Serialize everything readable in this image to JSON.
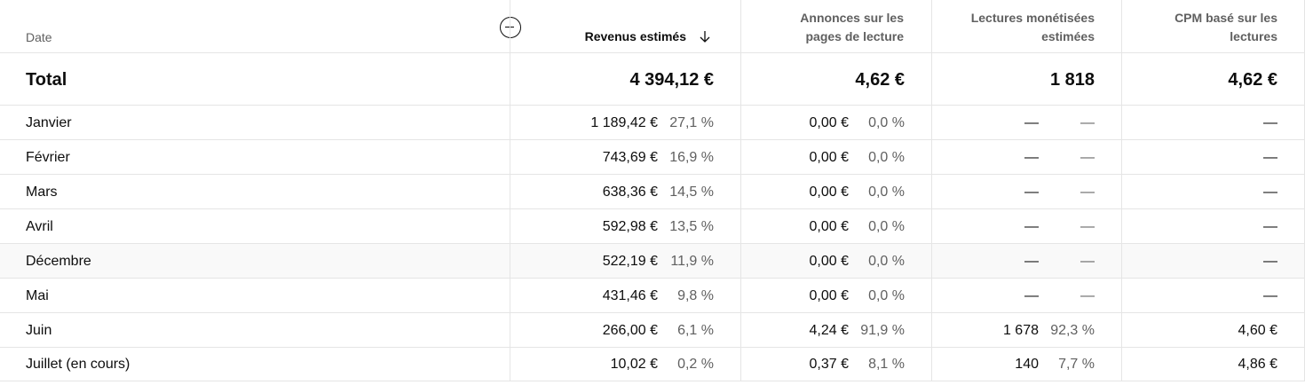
{
  "headers": {
    "date": "Date",
    "revenue": "Revenus estimés",
    "ads_line1": "Annonces sur les",
    "ads_line2": "pages de lecture",
    "plays_line1": "Lectures monétisées",
    "plays_line2": "estimées",
    "cpm_line1": "CPM basé sur les",
    "cpm_line2": "lectures"
  },
  "icons": {
    "add": "add-circle-icon",
    "sort": "arrow-down-icon"
  },
  "total": {
    "label": "Total",
    "revenue": "4 394,12 €",
    "ads": "4,62 €",
    "plays": "1 818",
    "cpm": "4,62 €"
  },
  "rows": [
    {
      "date": "Janvier",
      "revenue": "1 189,42 €",
      "revenue_pct": "27,1 %",
      "ads": "0,00 €",
      "ads_pct": "0,0 %",
      "plays": "—",
      "plays_pct": "—",
      "cpm": "—"
    },
    {
      "date": "Février",
      "revenue": "743,69 €",
      "revenue_pct": "16,9 %",
      "ads": "0,00 €",
      "ads_pct": "0,0 %",
      "plays": "—",
      "plays_pct": "—",
      "cpm": "—"
    },
    {
      "date": "Mars",
      "revenue": "638,36 €",
      "revenue_pct": "14,5 %",
      "ads": "0,00 €",
      "ads_pct": "0,0 %",
      "plays": "—",
      "plays_pct": "—",
      "cpm": "—"
    },
    {
      "date": "Avril",
      "revenue": "592,98 €",
      "revenue_pct": "13,5 %",
      "ads": "0,00 €",
      "ads_pct": "0,0 %",
      "plays": "—",
      "plays_pct": "—",
      "cpm": "—"
    },
    {
      "date": "Décembre",
      "revenue": "522,19 €",
      "revenue_pct": "11,9 %",
      "ads": "0,00 €",
      "ads_pct": "0,0 %",
      "plays": "—",
      "plays_pct": "—",
      "cpm": "—"
    },
    {
      "date": "Mai",
      "revenue": "431,46 €",
      "revenue_pct": "9,8 %",
      "ads": "0,00 €",
      "ads_pct": "0,0 %",
      "plays": "—",
      "plays_pct": "—",
      "cpm": "—"
    },
    {
      "date": "Juin",
      "revenue": "266,00 €",
      "revenue_pct": "6,1 %",
      "ads": "4,24 €",
      "ads_pct": "91,9 %",
      "plays": "1 678",
      "plays_pct": "92,3 %",
      "cpm": "4,60 €"
    },
    {
      "date": "Juillet (en cours)",
      "revenue": "10,02 €",
      "revenue_pct": "0,2 %",
      "ads": "0,37 €",
      "ads_pct": "8,1 %",
      "plays": "140",
      "plays_pct": "7,7 %",
      "cpm": "4,86 €"
    }
  ]
}
